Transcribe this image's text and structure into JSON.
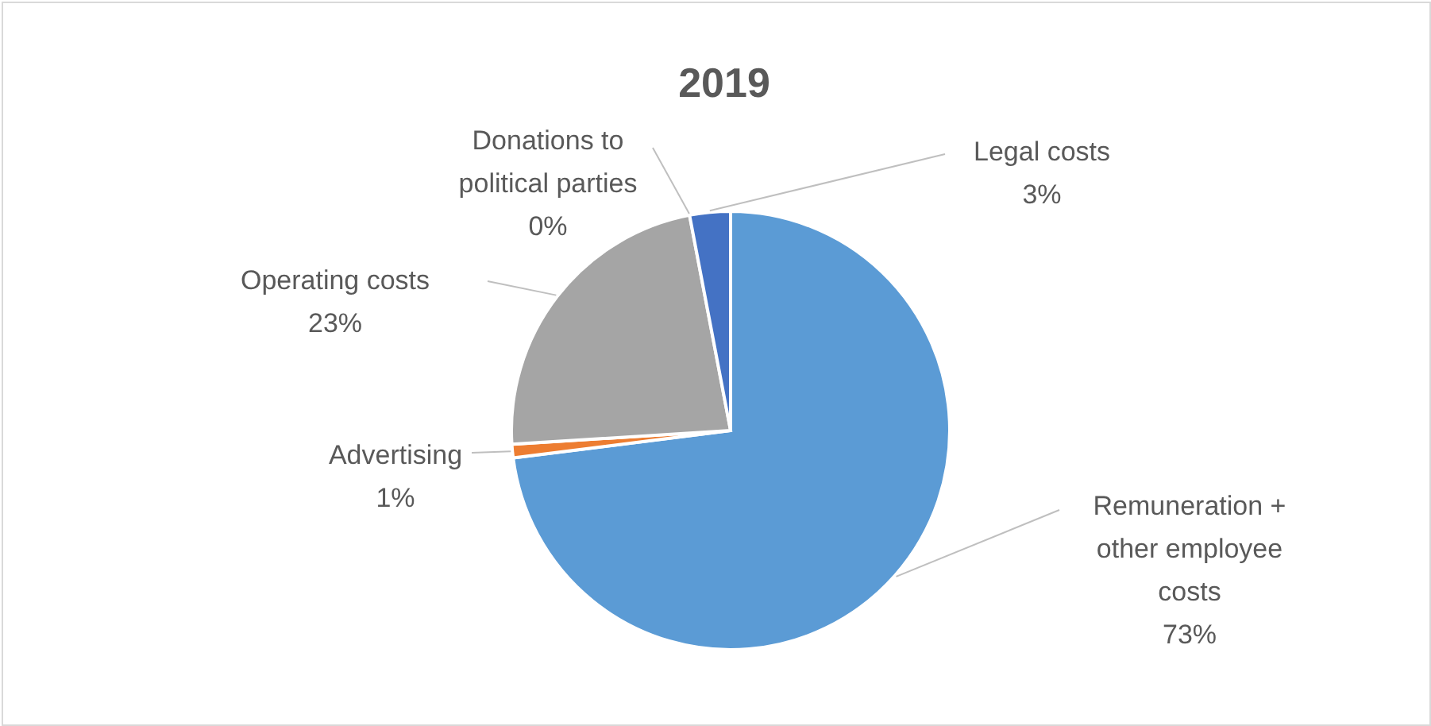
{
  "chart_data": {
    "type": "pie",
    "title": "2019",
    "categories": [
      "Remuneration + other employee costs",
      "Advertising",
      "Operating costs",
      "Donations to political parties",
      "Legal costs"
    ],
    "values": [
      73,
      1,
      23,
      0,
      3
    ],
    "colors": [
      "#5b9bd5",
      "#ed7d31",
      "#a5a5a5",
      "#ffc000",
      "#4472c4"
    ],
    "value_labels": [
      "73%",
      "1%",
      "23%",
      "0%",
      "3%"
    ]
  }
}
